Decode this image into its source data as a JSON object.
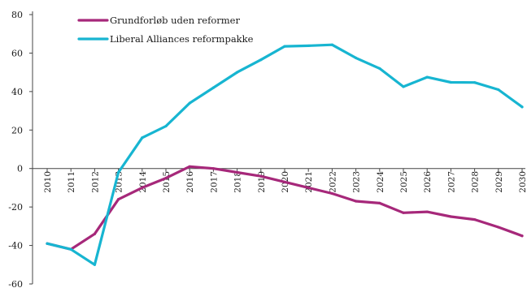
{
  "chart_data": {
    "type": "line",
    "x": [
      "2010",
      "2011",
      "2012",
      "2013",
      "2014",
      "2015",
      "2016",
      "2017",
      "2018",
      "2019",
      "2020",
      "2021",
      "2022",
      "2023",
      "2024",
      "2025",
      "2026",
      "2027",
      "2028",
      "2029",
      "2030"
    ],
    "ylim": [
      -60,
      80
    ],
    "yticks": [
      -60,
      -40,
      -20,
      0,
      20,
      40,
      60,
      80
    ],
    "grid": false,
    "legend_position": "top-left",
    "series": [
      {
        "name": "Grundforløb uden reformer",
        "color": "#a6287a",
        "values": [
          -39,
          -42,
          -34,
          -16,
          -10,
          -5,
          1,
          0,
          -2,
          -4,
          -7,
          -10,
          -13,
          -17,
          -18,
          -23,
          -22.5,
          -25,
          -26.5,
          -30.5,
          -35
        ]
      },
      {
        "name": "Liberal Alliances reformpakke",
        "color": "#17b5d1",
        "values": [
          -39,
          -42,
          -50,
          -2,
          16,
          22,
          34,
          42,
          50,
          56.5,
          63.5,
          63.8,
          64.3,
          57.5,
          52,
          42.5,
          47.5,
          44.8,
          44.7,
          41,
          32
        ]
      }
    ]
  }
}
